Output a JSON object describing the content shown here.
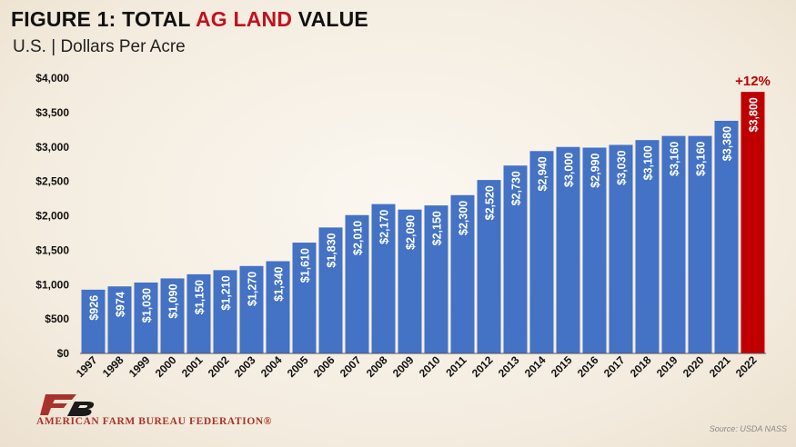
{
  "header": {
    "title_part1": "FIGURE 1: TOTAL ",
    "title_accent": "AG LAND",
    "title_part2": " VALUE",
    "subtitle": "U.S. | Dollars Per Acre"
  },
  "footer": {
    "org_name": "AMERICAN FARM BUREAU FEDERATION®",
    "source": "Source: USDA NASS"
  },
  "colors": {
    "bar": "#4472c4",
    "highlight": "#c00000",
    "accent_text": "#c0121e"
  },
  "chart_data": {
    "type": "bar",
    "title": "FIGURE 1: TOTAL AG LAND VALUE",
    "subtitle": "U.S. | Dollars Per Acre",
    "xlabel": "",
    "ylabel": "",
    "ylim": [
      0,
      4000
    ],
    "ytick_values": [
      0,
      500,
      1000,
      1500,
      2000,
      2500,
      3000,
      3500,
      4000
    ],
    "ytick_labels": [
      "$0",
      "$500",
      "$1,000",
      "$1,500",
      "$2,000",
      "$2,500",
      "$3,000",
      "$3,500",
      "$4,000"
    ],
    "grid": false,
    "categories": [
      "1997",
      "1998",
      "1999",
      "2000",
      "2001",
      "2002",
      "2003",
      "2004",
      "2005",
      "2006",
      "2007",
      "2008",
      "2009",
      "2010",
      "2011",
      "2012",
      "2013",
      "2014",
      "2015",
      "2016",
      "2017",
      "2018",
      "2019",
      "2020",
      "2021",
      "2022"
    ],
    "values": [
      926,
      974,
      1030,
      1090,
      1150,
      1210,
      1270,
      1340,
      1610,
      1830,
      2010,
      2170,
      2090,
      2150,
      2300,
      2520,
      2730,
      2940,
      3000,
      2990,
      3030,
      3100,
      3160,
      3160,
      3380,
      3800
    ],
    "data_labels": [
      "$926",
      "$974",
      "$1,030",
      "$1,090",
      "$1,150",
      "$1,210",
      "$1,270",
      "$1,340",
      "$1,610",
      "$1,830",
      "$2,010",
      "$2,170",
      "$2,090",
      "$2,150",
      "$2,300",
      "$2,520",
      "$2,730",
      "$2,940",
      "$3,000",
      "$2,990",
      "$3,030",
      "$3,100",
      "$3,160",
      "$3,160",
      "$3,380",
      "$3,800"
    ],
    "highlight_category": "2022",
    "annotations": [
      {
        "category": "2022",
        "text": "+12%"
      }
    ]
  }
}
